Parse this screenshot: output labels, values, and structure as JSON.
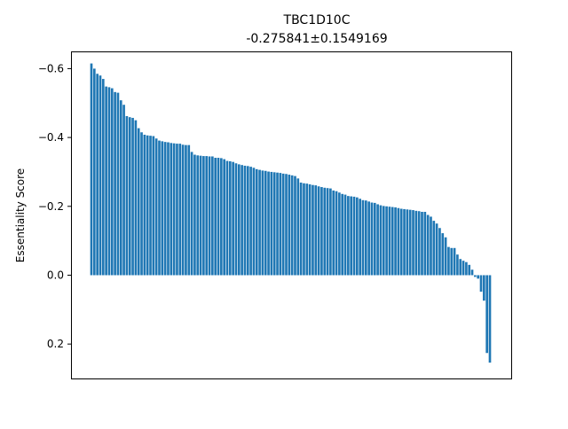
{
  "chart_data": {
    "type": "bar",
    "title": "TBC1D10C",
    "subtitle": "-0.275841±0.1549169",
    "xlabel": "",
    "ylabel": "Essentiality Score",
    "y_inverted": true,
    "ylim": [
      0.3,
      -0.65
    ],
    "yticks": [
      -0.6,
      -0.4,
      -0.2,
      0.0,
      0.2
    ],
    "ytick_labels": [
      "−0.6",
      "−0.4",
      "−0.2",
      "0.0",
      "0.2"
    ],
    "x_ticks_visible": false,
    "grid": false,
    "bar_color": "#1f77b4",
    "values": [
      -0.615,
      -0.6,
      -0.585,
      -0.58,
      -0.57,
      -0.548,
      -0.546,
      -0.543,
      -0.532,
      -0.53,
      -0.508,
      -0.495,
      -0.462,
      -0.459,
      -0.457,
      -0.45,
      -0.427,
      -0.415,
      -0.408,
      -0.406,
      -0.405,
      -0.404,
      -0.397,
      -0.391,
      -0.389,
      -0.387,
      -0.386,
      -0.384,
      -0.383,
      -0.382,
      -0.382,
      -0.379,
      -0.378,
      -0.378,
      -0.358,
      -0.35,
      -0.348,
      -0.347,
      -0.346,
      -0.346,
      -0.345,
      -0.345,
      -0.341,
      -0.341,
      -0.34,
      -0.337,
      -0.332,
      -0.331,
      -0.329,
      -0.325,
      -0.322,
      -0.32,
      -0.318,
      -0.317,
      -0.315,
      -0.312,
      -0.308,
      -0.306,
      -0.304,
      -0.303,
      -0.301,
      -0.3,
      -0.299,
      -0.298,
      -0.297,
      -0.295,
      -0.294,
      -0.292,
      -0.29,
      -0.288,
      -0.281,
      -0.269,
      -0.267,
      -0.266,
      -0.264,
      -0.262,
      -0.261,
      -0.258,
      -0.256,
      -0.254,
      -0.253,
      -0.252,
      -0.246,
      -0.244,
      -0.24,
      -0.236,
      -0.234,
      -0.23,
      -0.229,
      -0.228,
      -0.226,
      -0.222,
      -0.218,
      -0.217,
      -0.214,
      -0.211,
      -0.21,
      -0.206,
      -0.203,
      -0.201,
      -0.2,
      -0.199,
      -0.198,
      -0.197,
      -0.195,
      -0.193,
      -0.192,
      -0.191,
      -0.19,
      -0.189,
      -0.187,
      -0.186,
      -0.184,
      -0.184,
      -0.175,
      -0.17,
      -0.158,
      -0.15,
      -0.137,
      -0.122,
      -0.11,
      -0.082,
      -0.079,
      -0.079,
      -0.06,
      -0.047,
      -0.042,
      -0.038,
      -0.03,
      -0.016,
      0.005,
      0.01,
      0.048,
      0.074,
      0.226,
      0.254
    ]
  }
}
